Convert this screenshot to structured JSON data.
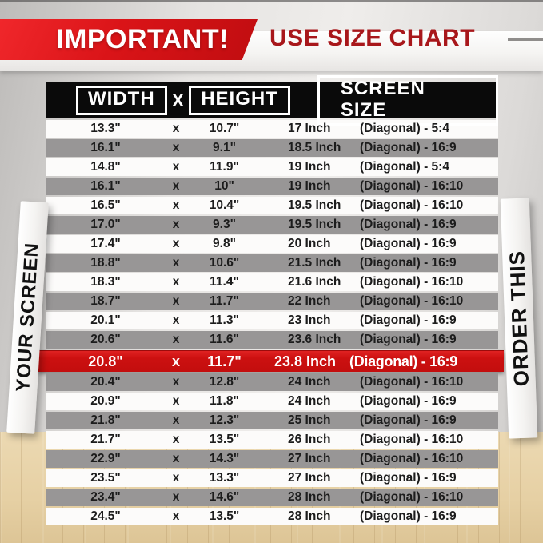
{
  "header": {
    "badge": "IMPORTANT!",
    "title": "USE SIZE CHART"
  },
  "side_labels": {
    "left": "YOUR SCREEN",
    "right": "ORDER THIS"
  },
  "table_header": {
    "width": "WIDTH",
    "separator": "X",
    "height": "HEIGHT",
    "screen_size": "SCREEN SIZE"
  },
  "row_separator": "x",
  "colors": {
    "badge_red": "#d8161a",
    "title_red": "#a8171b",
    "highlight_row_red": "#c90f0f",
    "header_black": "#0a0a0a",
    "gray_row": "#989696",
    "white_row": "#fcfbfa",
    "wood_floor": "#e6d0a4"
  },
  "chart_data": {
    "type": "table",
    "title": "USE SIZE CHART",
    "columns": [
      "WIDTH",
      "HEIGHT",
      "SCREEN SIZE"
    ],
    "highlighted_index": 12,
    "rows": [
      {
        "width": "13.3\"",
        "height": "10.7\"",
        "inch": "17 Inch",
        "diagonal": "(Diagonal) - 5:4",
        "highlight": false
      },
      {
        "width": "16.1\"",
        "height": "9.1\"",
        "inch": "18.5 Inch",
        "diagonal": "(Diagonal) - 16:9",
        "highlight": false
      },
      {
        "width": "14.8\"",
        "height": "11.9\"",
        "inch": "19 Inch",
        "diagonal": "(Diagonal) - 5:4",
        "highlight": false
      },
      {
        "width": "16.1\"",
        "height": "10\"",
        "inch": "19 Inch",
        "diagonal": "(Diagonal) - 16:10",
        "highlight": false
      },
      {
        "width": "16.5\"",
        "height": "10.4\"",
        "inch": "19.5 Inch",
        "diagonal": "(Diagonal) - 16:10",
        "highlight": false
      },
      {
        "width": "17.0\"",
        "height": "9.3\"",
        "inch": "19.5 Inch",
        "diagonal": "(Diagonal) - 16:9",
        "highlight": false
      },
      {
        "width": "17.4\"",
        "height": "9.8\"",
        "inch": "20 Inch",
        "diagonal": "(Diagonal) - 16:9",
        "highlight": false
      },
      {
        "width": "18.8\"",
        "height": "10.6\"",
        "inch": "21.5 Inch",
        "diagonal": "(Diagonal) - 16:9",
        "highlight": false
      },
      {
        "width": "18.3\"",
        "height": "11.4\"",
        "inch": "21.6 Inch",
        "diagonal": "(Diagonal) - 16:10",
        "highlight": false
      },
      {
        "width": "18.7\"",
        "height": "11.7\"",
        "inch": "22 Inch",
        "diagonal": "(Diagonal) - 16:10",
        "highlight": false
      },
      {
        "width": "20.1\"",
        "height": "11.3\"",
        "inch": "23 Inch",
        "diagonal": "(Diagonal) - 16:9",
        "highlight": false
      },
      {
        "width": "20.6\"",
        "height": "11.6\"",
        "inch": "23.6 Inch",
        "diagonal": "(Diagonal) - 16:9",
        "highlight": false
      },
      {
        "width": "20.8\"",
        "height": "11.7\"",
        "inch": "23.8 Inch",
        "diagonal": "(Diagonal) - 16:9",
        "highlight": true
      },
      {
        "width": "20.4\"",
        "height": "12.8\"",
        "inch": "24 Inch",
        "diagonal": "(Diagonal) - 16:10",
        "highlight": false
      },
      {
        "width": "20.9\"",
        "height": "11.8\"",
        "inch": "24 Inch",
        "diagonal": "(Diagonal) - 16:9",
        "highlight": false
      },
      {
        "width": "21.8\"",
        "height": "12.3\"",
        "inch": "25 Inch",
        "diagonal": "(Diagonal) - 16:9",
        "highlight": false
      },
      {
        "width": "21.7\"",
        "height": "13.5\"",
        "inch": "26 Inch",
        "diagonal": "(Diagonal) - 16:10",
        "highlight": false
      },
      {
        "width": "22.9\"",
        "height": "14.3\"",
        "inch": "27 Inch",
        "diagonal": "(Diagonal) - 16:10",
        "highlight": false
      },
      {
        "width": "23.5\"",
        "height": "13.3\"",
        "inch": "27 Inch",
        "diagonal": "(Diagonal) - 16:9",
        "highlight": false
      },
      {
        "width": "23.4\"",
        "height": "14.6\"",
        "inch": "28 Inch",
        "diagonal": "(Diagonal) - 16:10",
        "highlight": false
      },
      {
        "width": "24.5\"",
        "height": "13.5\"",
        "inch": "28 Inch",
        "diagonal": "(Diagonal) - 16:9",
        "highlight": false
      }
    ]
  }
}
